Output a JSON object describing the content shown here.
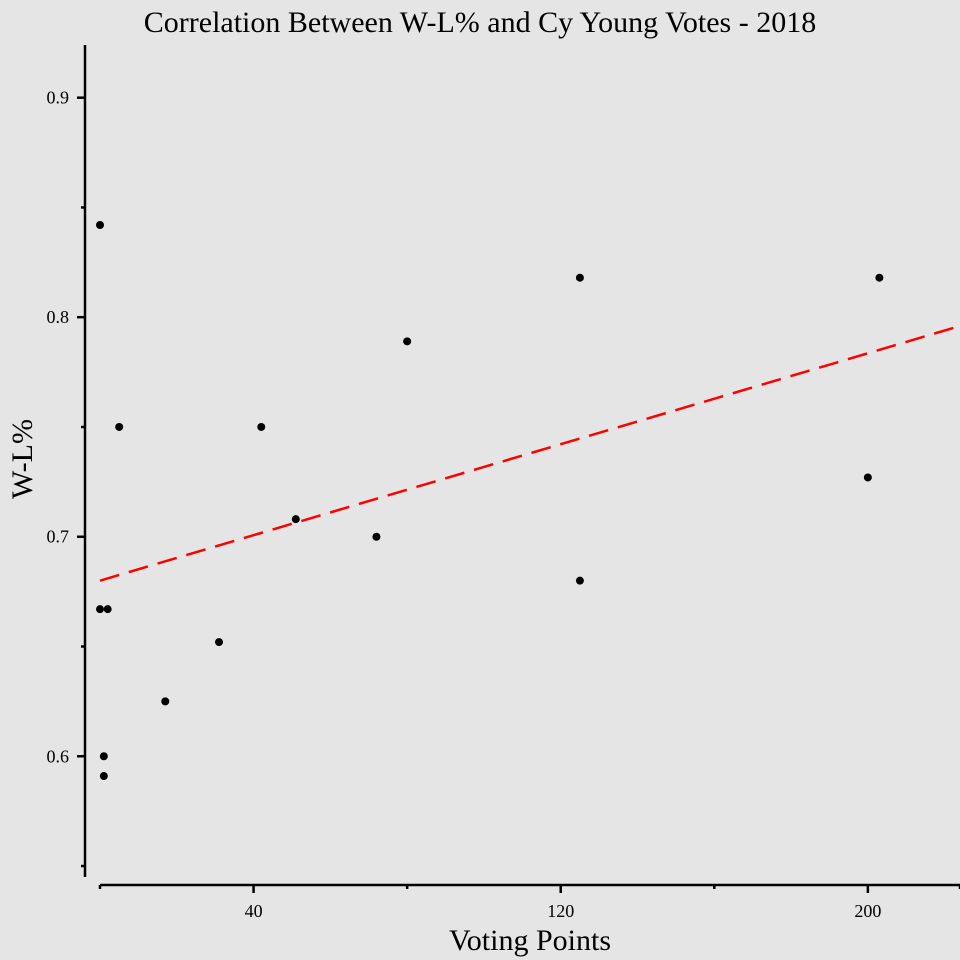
{
  "chart_data": {
    "type": "scatter",
    "title": "Correlation Between W-L% and Cy Young Votes - 2018",
    "xlabel": "Voting Points",
    "ylabel": "W-L%",
    "xlim": [
      0,
      224
    ],
    "ylim": [
      0.545,
      0.924
    ],
    "x_major_ticks": [
      40,
      120,
      200
    ],
    "x_minor_ticks": [
      0,
      80,
      160,
      224
    ],
    "y_major_ticks": [
      0.6,
      0.7,
      0.8,
      0.9
    ],
    "y_minor_ticks": [
      0.55,
      0.65,
      0.75,
      0.85
    ],
    "grid": false,
    "points": [
      {
        "x": 0,
        "y": 0.842
      },
      {
        "x": 0,
        "y": 0.667
      },
      {
        "x": 2,
        "y": 0.667
      },
      {
        "x": 1,
        "y": 0.6
      },
      {
        "x": 1,
        "y": 0.591
      },
      {
        "x": 5,
        "y": 0.75
      },
      {
        "x": 17,
        "y": 0.625
      },
      {
        "x": 31,
        "y": 0.652
      },
      {
        "x": 42,
        "y": 0.75
      },
      {
        "x": 51,
        "y": 0.708
      },
      {
        "x": 72,
        "y": 0.7
      },
      {
        "x": 80,
        "y": 0.789
      },
      {
        "x": 125,
        "y": 0.818
      },
      {
        "x": 125,
        "y": 0.68
      },
      {
        "x": 200,
        "y": 0.727
      },
      {
        "x": 203,
        "y": 0.818
      }
    ],
    "trendline": {
      "style": "dashed",
      "color": "#ff0000",
      "x": [
        0,
        224
      ],
      "y": [
        0.68,
        0.796
      ]
    },
    "colors": {
      "background": "#e5e5e5",
      "points": "#000000",
      "trendline": "#ff0000"
    }
  }
}
